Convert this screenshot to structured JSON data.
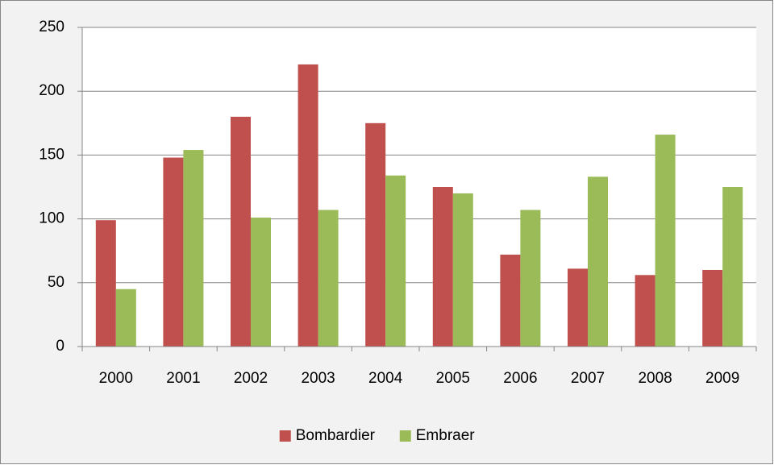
{
  "chart_data": {
    "type": "bar",
    "categories": [
      "2000",
      "2001",
      "2002",
      "2003",
      "2004",
      "2005",
      "2006",
      "2007",
      "2008",
      "2009"
    ],
    "series": [
      {
        "name": "Bombardier",
        "color": "#c0504d",
        "values": [
          99,
          148,
          180,
          221,
          175,
          125,
          72,
          61,
          56,
          60
        ]
      },
      {
        "name": "Embraer",
        "color": "#9bbb59",
        "values": [
          45,
          154,
          101,
          107,
          134,
          120,
          107,
          133,
          166,
          125
        ]
      }
    ],
    "ylim": [
      0,
      250
    ],
    "yticks": [
      0,
      50,
      100,
      150,
      200,
      250
    ],
    "grid": true,
    "legend": "bottom"
  }
}
